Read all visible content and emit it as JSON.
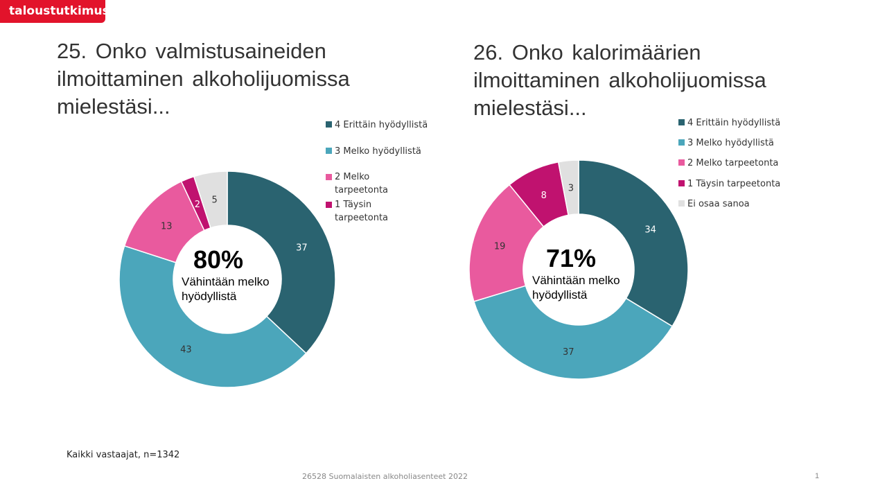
{
  "logo": "taloustutkimus",
  "colors": [
    "#2a6370",
    "#4ba6bb",
    "#e95a9e",
    "#c0126f",
    "#e0e0e0"
  ],
  "chart_data": [
    {
      "type": "pie",
      "variant": "donut",
      "title": "25. Onko valmistusaineiden ilmoittaminen alkoholijuomissa mielestäsi...",
      "categories": [
        "4 Erittäin hyödyllistä",
        "3 Melko hyödyllistä",
        "2 Melko tarpeetonta",
        "1 Täysin tarpeetonta",
        "Ei osaa sanoa"
      ],
      "legend": [
        "4 Erittäin hyödyllistä",
        "3 Melko hyödyllistä",
        "2 Melko tarpeetonta",
        "1 Täysin tarpeetonta"
      ],
      "values": [
        37,
        43,
        13,
        2,
        5
      ],
      "center_value": "80%",
      "center_label": "Vähintään melko hyödyllistä"
    },
    {
      "type": "pie",
      "variant": "donut",
      "title": "26. Onko kalorimäärien ilmoittaminen alkoholijuomissa mielestäsi...",
      "categories": [
        "4 Erittäin hyödyllistä",
        "3 Melko hyödyllistä",
        "2 Melko tarpeetonta",
        "1 Täysin tarpeetonta",
        "Ei osaa sanoa"
      ],
      "legend": [
        "4 Erittäin hyödyllistä",
        "3 Melko hyödyllistä",
        "2 Melko tarpeetonta",
        "1 Täysin tarpeetonta",
        "Ei osaa sanoa"
      ],
      "values": [
        34,
        37,
        19,
        8,
        3
      ],
      "center_value": "71%",
      "center_label": "Vähintään melko hyödyllistä"
    }
  ],
  "note": "Kaikki vastaajat, n=1342",
  "footer": "26528 Suomalaisten alkoholiasenteet 2022",
  "page_number": "1"
}
